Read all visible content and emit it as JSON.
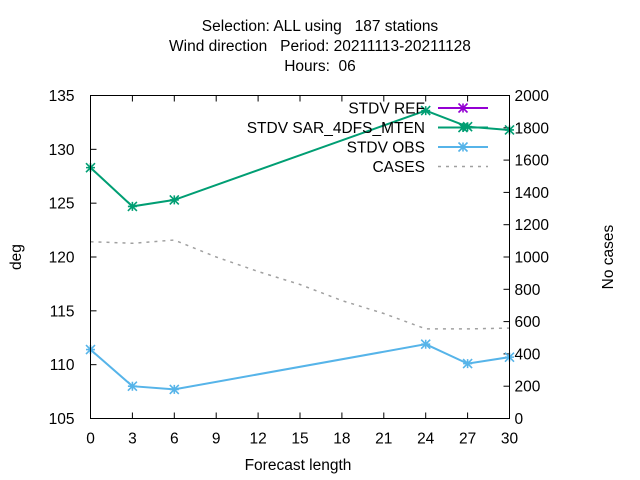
{
  "chart_data": {
    "type": "line",
    "title_lines": [
      "Selection: ALL using   187 stations",
      "Wind direction   Period: 20211113-20211128",
      "Hours:  06"
    ],
    "xlabel": "Forecast length",
    "ylabel": "deg",
    "y2label": "No cases",
    "xlim": [
      0,
      30
    ],
    "ylim": [
      105,
      135
    ],
    "y2lim": [
      0,
      2000
    ],
    "x_ticks": [
      0,
      3,
      6,
      9,
      12,
      15,
      18,
      21,
      24,
      27,
      30
    ],
    "y_ticks": [
      105,
      110,
      115,
      120,
      125,
      130,
      135
    ],
    "y2_ticks": [
      0,
      200,
      400,
      600,
      800,
      1000,
      1200,
      1400,
      1600,
      1800,
      2000
    ],
    "grid": false,
    "legend_position": "top-right",
    "series": [
      {
        "name": "STDV REF",
        "axis": "y1",
        "color": "#9400d3",
        "style": "solid",
        "marker": "star",
        "x": [],
        "values": []
      },
      {
        "name": "STDV SAR_4DFS_MTEN",
        "axis": "y1",
        "color": "#009e73",
        "style": "solid",
        "marker": "star",
        "x": [
          0,
          3,
          6,
          24,
          27,
          30
        ],
        "values": [
          128.3,
          124.7,
          125.3,
          133.6,
          132.1,
          131.8
        ]
      },
      {
        "name": "STDV OBS",
        "axis": "y1",
        "color": "#56b4e9",
        "style": "solid",
        "marker": "star",
        "x": [
          0,
          3,
          6,
          24,
          27,
          30
        ],
        "values": [
          111.4,
          108.0,
          107.7,
          111.9,
          110.1,
          110.7
        ]
      },
      {
        "name": "CASES",
        "axis": "y2",
        "color": "#a0a0a0",
        "style": "dashed",
        "marker": "none",
        "x": [
          0,
          3,
          6,
          9,
          12,
          15,
          18,
          21,
          24,
          27,
          30
        ],
        "values": [
          1095,
          1085,
          1105,
          1000,
          910,
          830,
          730,
          650,
          555,
          555,
          560
        ]
      }
    ]
  }
}
